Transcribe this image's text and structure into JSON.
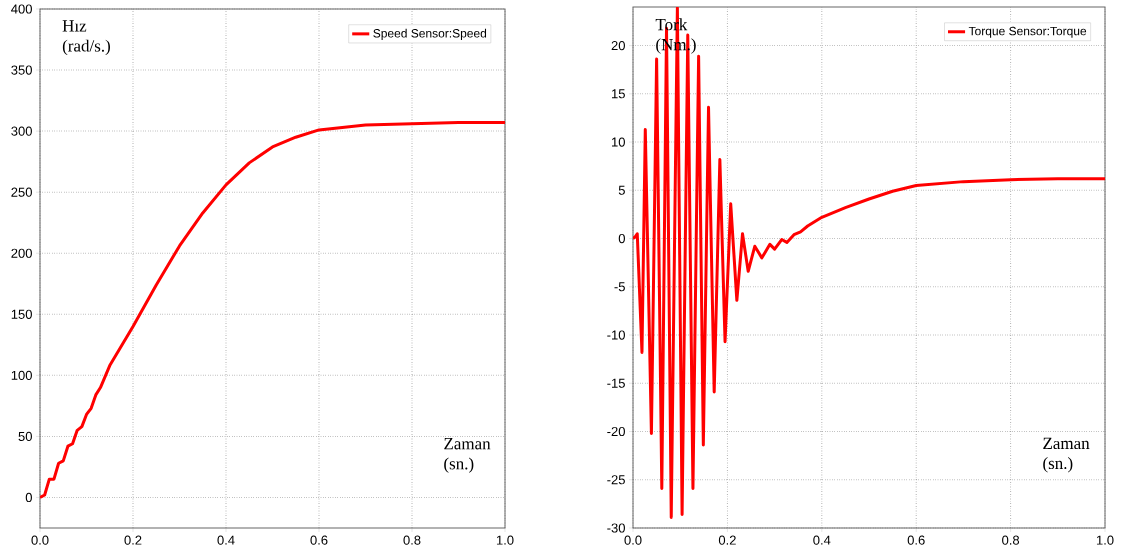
{
  "chart_data": [
    {
      "type": "line",
      "xlabel": "Zaman (sn.)",
      "ylabel": "Hız (rad/s.)",
      "xlim": [
        0,
        1
      ],
      "ylim": [
        -25,
        400
      ],
      "xticks": [
        {
          "value": 0,
          "label": "0.0"
        },
        {
          "value": 0.2,
          "label": "0.2"
        },
        {
          "value": 0.4,
          "label": "0.4"
        },
        {
          "value": 0.6,
          "label": "0.6"
        },
        {
          "value": 0.8,
          "label": "0.8"
        },
        {
          "value": 1,
          "label": "1.0"
        }
      ],
      "yticks": [
        0,
        50,
        100,
        150,
        200,
        250,
        300,
        350,
        400
      ],
      "grid": true,
      "legend": "top right",
      "line_style": "solid",
      "x": [
        0,
        0.01,
        0.02,
        0.03,
        0.04,
        0.05,
        0.06,
        0.07,
        0.08,
        0.09,
        0.1,
        0.11,
        0.12,
        0.13,
        0.15,
        0.2,
        0.25,
        0.3,
        0.35,
        0.4,
        0.45,
        0.5,
        0.55,
        0.6,
        0.7,
        0.8,
        0.9,
        1.0
      ],
      "series": [
        {
          "name": "Speed Sensor:Speed",
          "color": "#ff0000",
          "values": [
            0,
            2,
            15,
            15,
            28,
            30,
            42,
            44,
            55,
            58,
            68,
            73,
            84,
            90,
            108,
            140,
            174,
            206,
            233,
            256,
            274,
            287,
            295,
            301,
            305,
            306,
            307,
            307
          ]
        }
      ]
    },
    {
      "type": "line",
      "xlabel": "Zaman (sn.)",
      "ylabel": "Tork (Nm.)",
      "xlim": [
        0,
        1
      ],
      "ylim": [
        -30,
        24
      ],
      "xticks": [
        {
          "value": 0,
          "label": "0.0"
        },
        {
          "value": 0.2,
          "label": "0.2"
        },
        {
          "value": 0.4,
          "label": "0.4"
        },
        {
          "value": 0.6,
          "label": "0.6"
        },
        {
          "value": 0.8,
          "label": "0.8"
        },
        {
          "value": 1,
          "label": "1.0"
        }
      ],
      "yticks": [
        -30,
        -25,
        -20,
        -15,
        -10,
        -5,
        0,
        5,
        10,
        15,
        20
      ],
      "grid": true,
      "legend": "top right",
      "line_style": "solid",
      "x": [
        0,
        0.005,
        0.009,
        0.019,
        0.026,
        0.039,
        0.05,
        0.061,
        0.071,
        0.081,
        0.094,
        0.104,
        0.116,
        0.127,
        0.139,
        0.149,
        0.16,
        0.172,
        0.184,
        0.195,
        0.207,
        0.22,
        0.232,
        0.244,
        0.258,
        0.273,
        0.29,
        0.3,
        0.315,
        0.326,
        0.341,
        0.355,
        0.37,
        0.4,
        0.45,
        0.5,
        0.55,
        0.6,
        0.7,
        0.8,
        0.9,
        1.0
      ],
      "series": [
        {
          "name": "Torque Sensor:Torque",
          "color": "#ff0000",
          "values": [
            0,
            0.2,
            0.5,
            -11.8,
            11.3,
            -20.2,
            18.6,
            -25.9,
            21.8,
            -28.9,
            23.9,
            -28.6,
            21.1,
            -25.9,
            18.9,
            -21.4,
            13.6,
            -15.9,
            8.2,
            -10.7,
            3.6,
            -6.4,
            0.5,
            -3.4,
            -0.8,
            -2.0,
            -0.6,
            -1.1,
            -0.1,
            -0.4,
            0.4,
            0.7,
            1.3,
            2.2,
            3.2,
            4.1,
            4.9,
            5.5,
            5.9,
            6.1,
            6.2,
            6.2
          ]
        }
      ]
    }
  ]
}
